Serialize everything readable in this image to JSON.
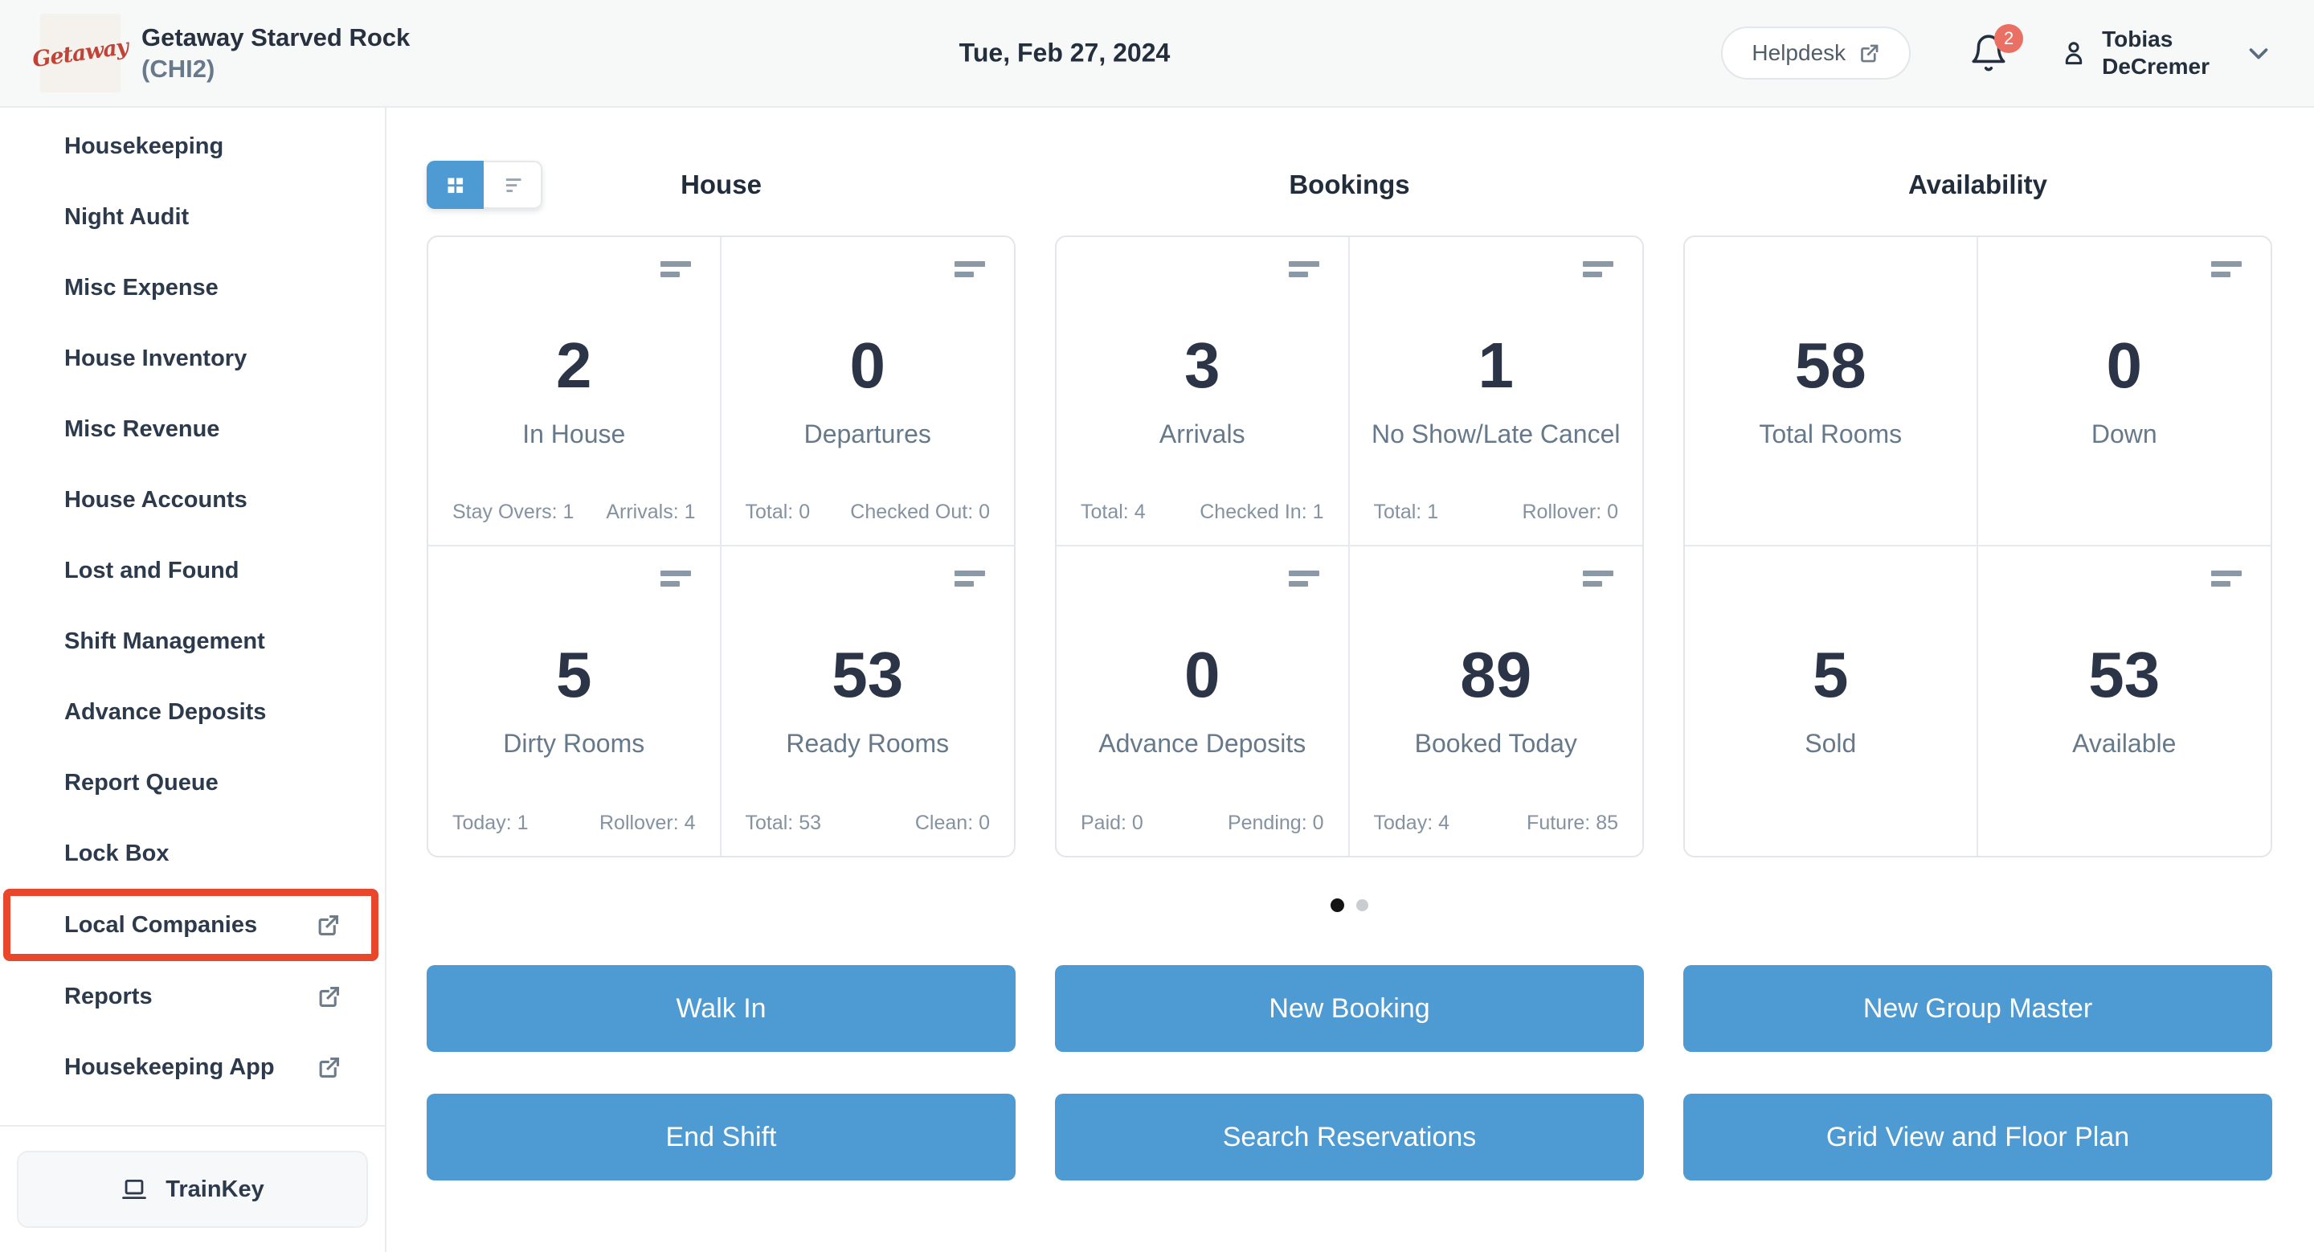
{
  "header": {
    "logo_text": "Getaway",
    "property_name": "Getaway Starved Rock",
    "property_code": "(CHI2)",
    "date": "Tue, Feb 27, 2024",
    "helpdesk_label": "Helpdesk",
    "notification_count": "2",
    "user_name_line1": "Tobias",
    "user_name_line2": "DeCremer"
  },
  "sidebar": {
    "items": [
      {
        "label": "Housekeeping",
        "external": false,
        "highlighted": false
      },
      {
        "label": "Night Audit",
        "external": false,
        "highlighted": false
      },
      {
        "label": "Misc Expense",
        "external": false,
        "highlighted": false
      },
      {
        "label": "House Inventory",
        "external": false,
        "highlighted": false
      },
      {
        "label": "Misc Revenue",
        "external": false,
        "highlighted": false
      },
      {
        "label": "House Accounts",
        "external": false,
        "highlighted": false
      },
      {
        "label": "Lost and Found",
        "external": false,
        "highlighted": false
      },
      {
        "label": "Shift Management",
        "external": false,
        "highlighted": false
      },
      {
        "label": "Advance Deposits",
        "external": false,
        "highlighted": false
      },
      {
        "label": "Report Queue",
        "external": false,
        "highlighted": false
      },
      {
        "label": "Lock Box",
        "external": false,
        "highlighted": false
      },
      {
        "label": "Local Companies",
        "external": true,
        "highlighted": true
      },
      {
        "label": "Reports",
        "external": true,
        "highlighted": false
      },
      {
        "label": "Housekeeping App",
        "external": true,
        "highlighted": false
      }
    ],
    "trainkey_label": "TrainKey"
  },
  "dashboard": {
    "view_toggle": {
      "active": "grid"
    },
    "sections": [
      {
        "title": "House",
        "cards": [
          {
            "value": "2",
            "label": "In House",
            "icon": true,
            "stats": [
              "Stay Overs: 1",
              "Arrivals: 1"
            ]
          },
          {
            "value": "0",
            "label": "Departures",
            "icon": true,
            "stats": [
              "Total: 0",
              "Checked Out: 0"
            ]
          },
          {
            "value": "5",
            "label": "Dirty Rooms",
            "icon": true,
            "stats": [
              "Today: 1",
              "Rollover: 4"
            ]
          },
          {
            "value": "53",
            "label": "Ready Rooms",
            "icon": true,
            "stats": [
              "Total: 53",
              "Clean: 0"
            ]
          }
        ]
      },
      {
        "title": "Bookings",
        "cards": [
          {
            "value": "3",
            "label": "Arrivals",
            "icon": true,
            "stats": [
              "Total: 4",
              "Checked In: 1"
            ]
          },
          {
            "value": "1",
            "label": "No Show/Late Cancel",
            "icon": true,
            "stats": [
              "Total: 1",
              "Rollover: 0"
            ]
          },
          {
            "value": "0",
            "label": "Advance Deposits",
            "icon": true,
            "stats": [
              "Paid: 0",
              "Pending: 0"
            ]
          },
          {
            "value": "89",
            "label": "Booked Today",
            "icon": true,
            "stats": [
              "Today: 4",
              "Future: 85"
            ]
          }
        ]
      },
      {
        "title": "Availability",
        "cards": [
          {
            "value": "58",
            "label": "Total Rooms",
            "icon": false,
            "stats": []
          },
          {
            "value": "0",
            "label": "Down",
            "icon": true,
            "stats": []
          },
          {
            "value": "5",
            "label": "Sold",
            "icon": false,
            "stats": []
          },
          {
            "value": "53",
            "label": "Available",
            "icon": true,
            "stats": []
          }
        ]
      }
    ],
    "pagination": {
      "pages": 2,
      "active_index": 0
    },
    "action_button_columns": [
      [
        "Walk In",
        "End Shift"
      ],
      [
        "New Booking",
        "Search Reservations"
      ],
      [
        "New Group Master",
        "Grid View and Floor Plan"
      ]
    ]
  },
  "icons": {
    "header": [
      "external-link-icon",
      "bell-icon",
      "user-icon",
      "chevron-down-icon"
    ],
    "sidebar": [
      "external-link-icon",
      "laptop-icon"
    ],
    "cards": [
      "card-menu-icon"
    ],
    "toggle": [
      "grid-view-icon",
      "list-view-icon"
    ]
  },
  "colors": {
    "accent_blue": "#4e9bd3",
    "highlight_red": "#e8472b",
    "badge_red": "#e97063",
    "logo_red": "#bf4437",
    "dark_text": "#2b3547",
    "muted_text": "#66798b",
    "stat_text": "#8492a1",
    "border": "#e6eaee",
    "header_bg": "#f7f8f8"
  }
}
